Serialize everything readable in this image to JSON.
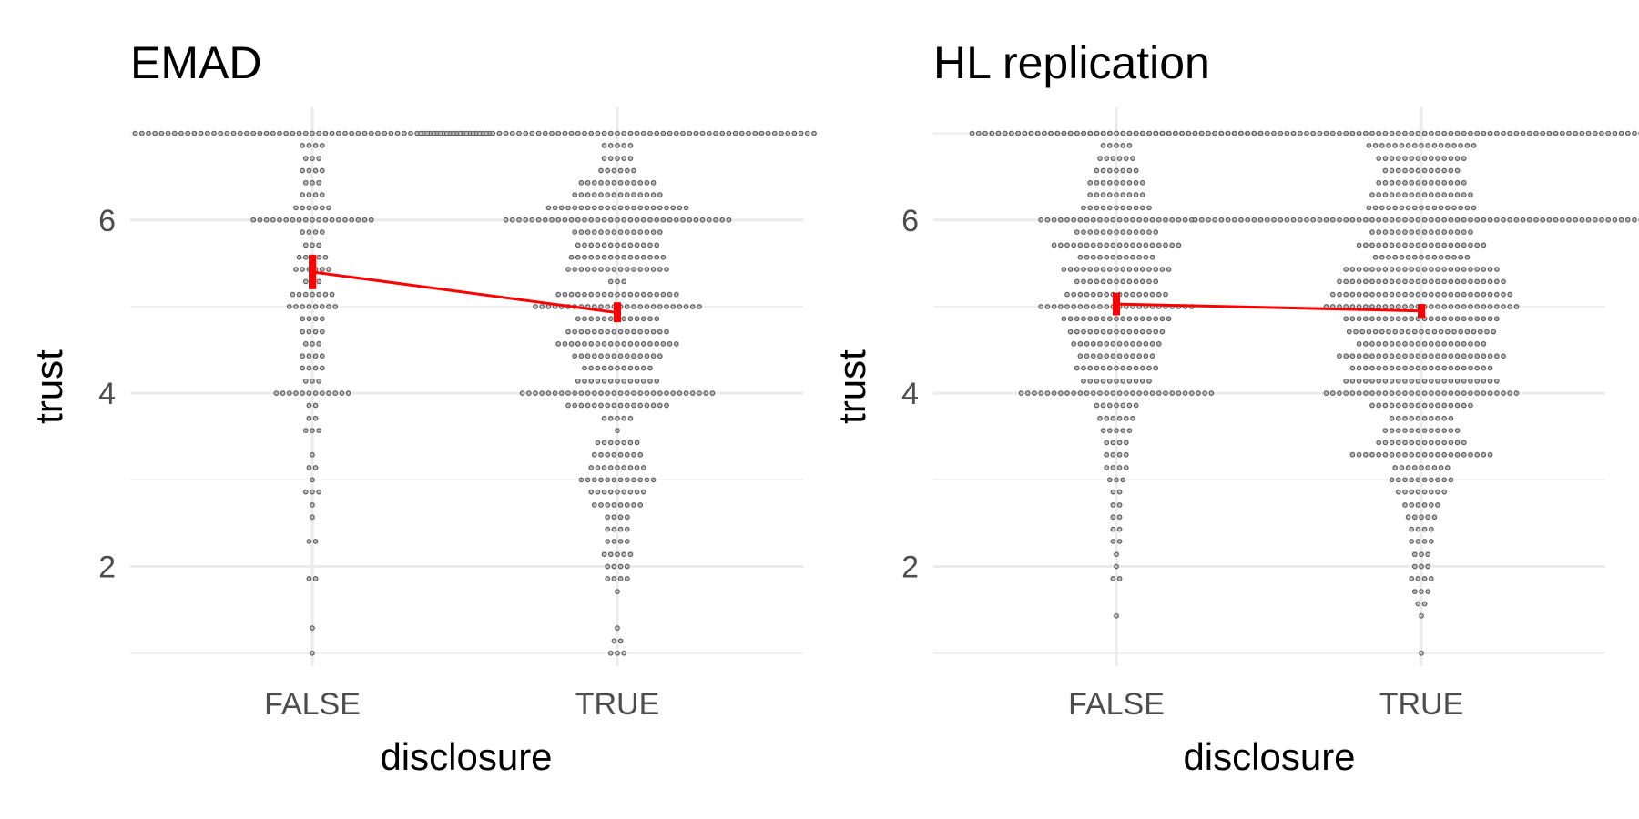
{
  "chart_data": [
    {
      "type": "dotplot",
      "title": "EMAD",
      "xlabel": "disclosure",
      "ylabel": "trust",
      "categories": [
        "FALSE",
        "TRUE"
      ],
      "ylim": [
        0.85,
        7.3
      ],
      "yticks": [
        2,
        4,
        6
      ],
      "y_tick_labels": [
        "2",
        "4",
        "6"
      ],
      "grid": true,
      "legend": "none",
      "colors": {
        "dots": "#595959",
        "mean": "#ff0000",
        "grid": "#ebebeb"
      },
      "distributions": [
        {
          "category": "FALSE",
          "counts": [
            [
              1,
              1
            ],
            [
              1.29,
              1
            ],
            [
              1.86,
              2
            ],
            [
              2.29,
              2
            ],
            [
              2.57,
              1
            ],
            [
              2.71,
              1
            ],
            [
              2.86,
              3
            ],
            [
              3,
              1
            ],
            [
              3.14,
              2
            ],
            [
              3.29,
              1
            ],
            [
              3.57,
              3
            ],
            [
              3.71,
              2
            ],
            [
              3.86,
              2
            ],
            [
              4,
              12
            ],
            [
              4.14,
              3
            ],
            [
              4.29,
              4
            ],
            [
              4.43,
              4
            ],
            [
              4.57,
              3
            ],
            [
              4.71,
              4
            ],
            [
              4.86,
              4
            ],
            [
              5,
              8
            ],
            [
              5.14,
              7
            ],
            [
              5.29,
              3
            ],
            [
              5.43,
              6
            ],
            [
              5.57,
              5
            ],
            [
              5.71,
              3
            ],
            [
              5.86,
              4
            ],
            [
              6,
              19
            ],
            [
              6.14,
              6
            ],
            [
              6.29,
              4
            ],
            [
              6.43,
              3
            ],
            [
              6.57,
              4
            ],
            [
              6.71,
              3
            ],
            [
              6.86,
              4
            ],
            [
              7,
              55
            ]
          ]
        },
        {
          "category": "TRUE",
          "counts": [
            [
              1,
              3
            ],
            [
              1.14,
              2
            ],
            [
              1.29,
              1
            ],
            [
              1.71,
              1
            ],
            [
              1.86,
              4
            ],
            [
              2,
              4
            ],
            [
              2.14,
              5
            ],
            [
              2.29,
              4
            ],
            [
              2.43,
              4
            ],
            [
              2.57,
              4
            ],
            [
              2.71,
              8
            ],
            [
              2.86,
              9
            ],
            [
              3,
              12
            ],
            [
              3.14,
              9
            ],
            [
              3.29,
              8
            ],
            [
              3.43,
              7
            ],
            [
              3.57,
              1
            ],
            [
              3.71,
              5
            ],
            [
              3.86,
              16
            ],
            [
              4,
              30
            ],
            [
              4.14,
              13
            ],
            [
              4.29,
              11
            ],
            [
              4.43,
              14
            ],
            [
              4.57,
              19
            ],
            [
              4.71,
              16
            ],
            [
              4.86,
              13
            ],
            [
              5,
              26
            ],
            [
              5.14,
              19
            ],
            [
              5.29,
              3
            ],
            [
              5.43,
              16
            ],
            [
              5.57,
              15
            ],
            [
              5.71,
              13
            ],
            [
              5.86,
              14
            ],
            [
              6,
              35
            ],
            [
              6.14,
              22
            ],
            [
              6.29,
              14
            ],
            [
              6.43,
              12
            ],
            [
              6.57,
              6
            ],
            [
              6.71,
              5
            ],
            [
              6.86,
              5
            ],
            [
              7,
              61
            ]
          ]
        }
      ],
      "means": [
        {
          "category": "FALSE",
          "mean": 5.4,
          "lower": 5.2,
          "upper": 5.6
        },
        {
          "category": "TRUE",
          "mean": 4.93,
          "lower": 4.82,
          "upper": 5.05
        }
      ]
    },
    {
      "type": "dotplot",
      "title": "HL replication",
      "xlabel": "disclosure",
      "ylabel": "trust",
      "categories": [
        "FALSE",
        "TRUE"
      ],
      "ylim": [
        0.85,
        7.3
      ],
      "yticks": [
        2,
        4,
        6
      ],
      "y_tick_labels": [
        "2",
        "4",
        "6"
      ],
      "grid": true,
      "legend": "none",
      "colors": {
        "dots": "#595959",
        "mean": "#ff0000",
        "grid": "#ebebeb"
      },
      "distributions": [
        {
          "category": "FALSE",
          "counts": [
            [
              1.43,
              1
            ],
            [
              1.86,
              2
            ],
            [
              2,
              1
            ],
            [
              2.14,
              1
            ],
            [
              2.29,
              2
            ],
            [
              2.43,
              2
            ],
            [
              2.57,
              2
            ],
            [
              2.71,
              2
            ],
            [
              2.86,
              2
            ],
            [
              3,
              3
            ],
            [
              3.14,
              4
            ],
            [
              3.29,
              4
            ],
            [
              3.43,
              4
            ],
            [
              3.57,
              5
            ],
            [
              3.71,
              6
            ],
            [
              3.86,
              7
            ],
            [
              4,
              30
            ],
            [
              4.14,
              11
            ],
            [
              4.29,
              13
            ],
            [
              4.43,
              12
            ],
            [
              4.57,
              14
            ],
            [
              4.71,
              15
            ],
            [
              4.86,
              17
            ],
            [
              5,
              24
            ],
            [
              5.14,
              16
            ],
            [
              5.29,
              13
            ],
            [
              5.43,
              17
            ],
            [
              5.57,
              12
            ],
            [
              5.71,
              20
            ],
            [
              5.86,
              13
            ],
            [
              6,
              24
            ],
            [
              6.14,
              11
            ],
            [
              6.29,
              9
            ],
            [
              6.43,
              9
            ],
            [
              6.57,
              7
            ],
            [
              6.71,
              6
            ],
            [
              6.86,
              5
            ],
            [
              7,
              45
            ]
          ]
        },
        {
          "category": "TRUE",
          "counts": [
            [
              1,
              1
            ],
            [
              1.43,
              1
            ],
            [
              1.57,
              2
            ],
            [
              1.71,
              3
            ],
            [
              1.86,
              4
            ],
            [
              2,
              3
            ],
            [
              2.14,
              3
            ],
            [
              2.29,
              4
            ],
            [
              2.43,
              4
            ],
            [
              2.57,
              5
            ],
            [
              2.71,
              6
            ],
            [
              2.86,
              8
            ],
            [
              3,
              10
            ],
            [
              3.14,
              9
            ],
            [
              3.29,
              22
            ],
            [
              3.43,
              14
            ],
            [
              3.57,
              12
            ],
            [
              3.71,
              10
            ],
            [
              3.86,
              16
            ],
            [
              4,
              30
            ],
            [
              4.14,
              24
            ],
            [
              4.29,
              22
            ],
            [
              4.43,
              26
            ],
            [
              4.57,
              20
            ],
            [
              4.71,
              23
            ],
            [
              4.86,
              24
            ],
            [
              5,
              30
            ],
            [
              5.14,
              28
            ],
            [
              5.29,
              26
            ],
            [
              5.43,
              24
            ],
            [
              5.57,
              15
            ],
            [
              5.71,
              20
            ],
            [
              5.86,
              16
            ],
            [
              6,
              70
            ],
            [
              6.14,
              17
            ],
            [
              6.29,
              16
            ],
            [
              6.43,
              14
            ],
            [
              6.57,
              12
            ],
            [
              6.71,
              14
            ],
            [
              6.86,
              17
            ],
            [
              7,
              132
            ]
          ]
        }
      ],
      "means": [
        {
          "category": "FALSE",
          "mean": 5.03,
          "lower": 4.9,
          "upper": 5.16
        },
        {
          "category": "TRUE",
          "mean": 4.95,
          "lower": 4.87,
          "upper": 5.03
        }
      ]
    }
  ]
}
